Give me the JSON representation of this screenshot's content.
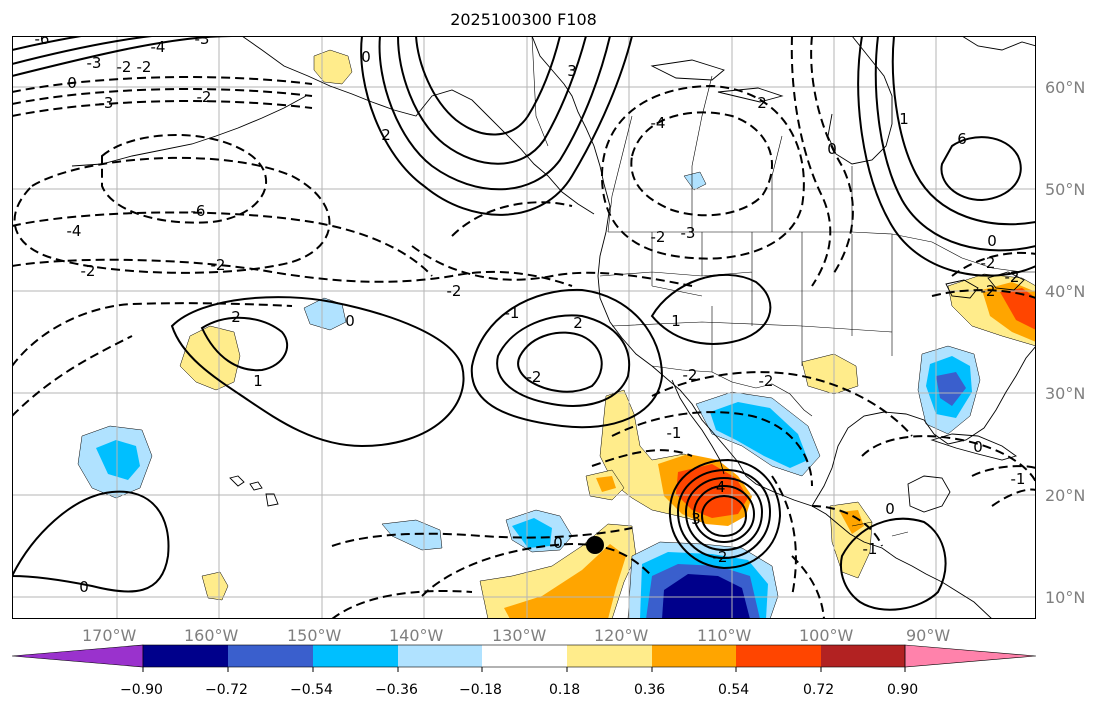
{
  "title": "2025100300 F108",
  "longitude_labels": [
    "170°W",
    "160°W",
    "150°W",
    "140°W",
    "130°W",
    "120°W",
    "110°W",
    "100°W",
    "90°W"
  ],
  "latitude_labels": [
    "60°N",
    "50°N",
    "40°N",
    "30°N",
    "20°N",
    "10°N"
  ],
  "colorbar": {
    "colors": [
      "#9a32cd",
      "#00008b",
      "#3a5fcd",
      "#00bfff",
      "#b0e2ff",
      "#ffffff",
      "#ffec8b",
      "#ffa500",
      "#ff4500",
      "#b22222",
      "#ff82ab"
    ],
    "tick_labels": [
      "−0.90",
      "−0.72",
      "−0.54",
      "−0.36",
      "−0.18",
      "0.18",
      "0.36",
      "0.54",
      "0.72",
      "0.90"
    ]
  },
  "contour_labels": [
    "-6",
    "-4",
    "-3",
    "-2",
    "-2",
    "0",
    "-3",
    "-3",
    "-2",
    "3",
    "-4",
    "-6",
    "-4",
    "-2",
    "-2",
    "-2",
    "2",
    "1",
    "0",
    "2",
    "-1",
    "-2",
    "-3",
    "-2",
    "1",
    "0",
    "2",
    "2",
    "0",
    "-2",
    "0",
    "-1",
    "3",
    "-2",
    "-4",
    "1",
    "6",
    "0",
    "-2",
    "-2",
    "-2",
    "0",
    "0",
    "-1",
    "-1",
    "-2"
  ],
  "storm_marker": "black-dot"
}
